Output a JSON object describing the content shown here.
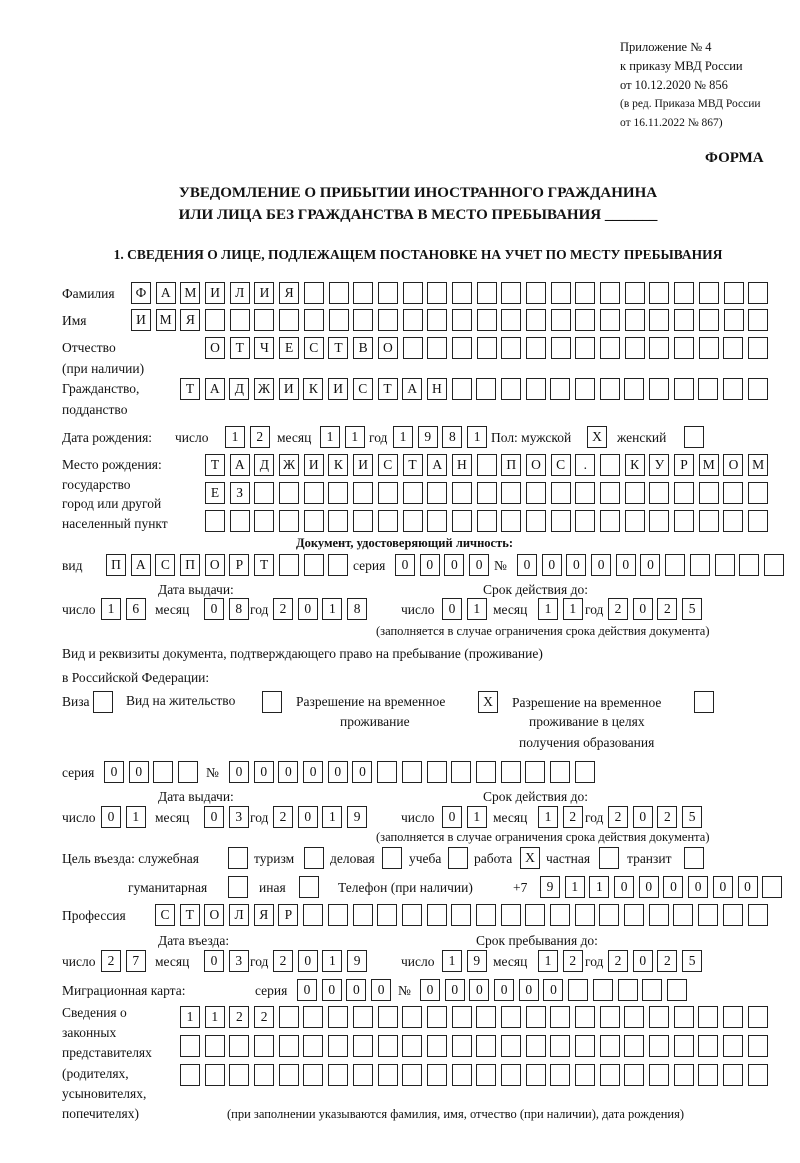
{
  "header": {
    "line1": "Приложение № 4",
    "line2": "к приказу МВД России",
    "line3": "от 10.12.2020 № 856",
    "line4": "(в ред. Приказа МВД России",
    "line5": "от 16.11.2022 № 867)"
  },
  "form_label": "ФОРМА",
  "title": {
    "line1": "УВЕДОМЛЕНИЕ О ПРИБЫТИИ ИНОСТРАННОГО ГРАЖДАНИНА",
    "line2": "ИЛИ ЛИЦА БЕЗ ГРАЖДАНСТВА В МЕСТО ПРЕБЫВАНИЯ _______"
  },
  "section1": "1. СВЕДЕНИЯ О ЛИЦЕ, ПОДЛЕЖАЩЕМ ПОСТАНОВКЕ НА УЧЕТ ПО МЕСТУ ПРЕБЫВАНИЯ",
  "labels": {
    "surname": "Фамилия",
    "name": "Имя",
    "patronymic": "Отчество",
    "patronymic2": "(при наличии)",
    "citizenship": "Гражданство,",
    "citizenship2": "подданство",
    "birth_date": "Дата рождения:",
    "day": "число",
    "month": "месяц",
    "year": "год",
    "sex": "Пол: мужской",
    "female": "женский",
    "birth_place": "Место рождения:",
    "bp2": "государство",
    "bp3": "город или другой",
    "bp4": "населенный пункт",
    "id_doc": "Документ, удостоверяющий личность:",
    "kind": "вид",
    "series": "серия",
    "number": "№",
    "issue_date": "Дата выдачи:",
    "valid_until": "Срок действия до:",
    "valid_note": "(заполняется в случае ограничения срока действия документа)",
    "right_doc1": "Вид и реквизиты документа, подтверждающего право на пребывание (проживание)",
    "right_doc2": "в Российской Федерации:",
    "visa": "Виза",
    "residence": "Вид на жительство",
    "trp1": "Разрешение на временное",
    "trp2": "проживание",
    "trpe1": "Разрешение на временное",
    "trpe2": "проживание в целях",
    "trpe3": "получения образования",
    "purpose": "Цель въезда: служебная",
    "tourism": "туризм",
    "business": "деловая",
    "study": "учеба",
    "work": "работа",
    "private": "частная",
    "transit": "транзит",
    "humanitarian": "гуманитарная",
    "other": "иная",
    "phone": "Телефон (при наличии)",
    "phone_prefix": "+7",
    "profession": "Профессия",
    "entry_date": "Дата въезда:",
    "stay_until": "Срок пребывания до:",
    "migration_card": "Миграционная карта:",
    "rep1": "Сведения о",
    "rep2": "законных",
    "rep3": "представителях",
    "rep4": "(родителях,",
    "rep5": "усыновителях,",
    "rep6": "попечителях)",
    "rep_note": "(при заполнении указываются фамилия, имя, отчество (при наличии), дата рождения)"
  },
  "fields": {
    "surname": "ФАМИЛИЯ",
    "name": "ИМЯ",
    "patronymic": "ОТЧЕСТВО",
    "citizenship": "ТАДЖИКИСТАН",
    "birth_day": "12",
    "birth_month": "11",
    "birth_year": "1981",
    "male": "X",
    "female": "",
    "birth_place1": "ТАДЖИКИСТАН ПОС. КУРМОМБ",
    "birth_place2": "ЕЗ",
    "birth_place3": "",
    "doc_kind": "ПАСПОРТ",
    "doc_series": "0000",
    "doc_number": "000000",
    "doc_issue_day": "16",
    "doc_issue_month": "08",
    "doc_issue_year": "2018",
    "doc_valid_day": "01",
    "doc_valid_month": "11",
    "doc_valid_year": "2025",
    "visa": "",
    "residence": "",
    "trp": "X",
    "trpe": "",
    "rd_series": "00",
    "rd_number": "000000",
    "rd_issue_day": "01",
    "rd_issue_month": "03",
    "rd_issue_year": "2019",
    "rd_valid_day": "01",
    "rd_valid_month": "12",
    "rd_valid_year": "2025",
    "p_service": "",
    "p_tourism": "",
    "p_business": "",
    "p_study": "",
    "p_work": "X",
    "p_private": "",
    "p_transit": "",
    "p_humanitarian": "",
    "p_other": "",
    "phone": "911000000",
    "profession": "СТОЛЯР",
    "entry_day": "27",
    "entry_month": "03",
    "entry_year": "2019",
    "stay_day": "19",
    "stay_month": "12",
    "stay_year": "2025",
    "mc_series": "0000",
    "mc_number": "000000",
    "rep1": "1122",
    "rep2": "",
    "rep3": ""
  }
}
